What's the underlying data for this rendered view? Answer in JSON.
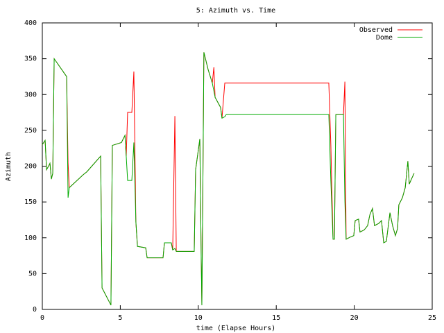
{
  "chart_data": {
    "type": "line",
    "title": "5: Azimuth vs. Time",
    "x_label": "time (Elapse Hours)",
    "y_label": "Azimuth",
    "x": [
      0,
      0.18,
      0.27,
      0.4,
      0.49,
      0.58,
      0.67,
      0.76,
      1.56,
      1.65,
      1.73,
      2.62,
      2.85,
      3.74,
      3.83,
      4.4,
      4.49,
      5.07,
      5.3,
      5.38,
      5.47,
      5.74,
      5.87,
      6.0,
      6.1,
      6.63,
      6.72,
      7.74,
      7.83,
      8.27,
      8.36,
      8.5,
      8.59,
      9.74,
      9.83,
      10.1,
      10.19,
      10.23,
      10.28,
      10.36,
      10.63,
      10.9,
      11.0,
      11.08,
      11.43,
      11.52,
      11.7,
      11.79,
      18.37,
      18.5,
      18.64,
      18.73,
      18.82,
      19.31,
      19.4,
      19.48,
      19.75,
      19.97,
      20.06,
      20.28,
      20.37,
      20.64,
      20.86,
      21.0,
      21.17,
      21.3,
      21.57,
      21.75,
      21.89,
      22.06,
      22.29,
      22.46,
      22.64,
      22.78,
      22.86,
      23.09,
      23.27,
      23.44,
      23.53,
      23.67,
      23.84
    ],
    "series": [
      {
        "name": "Observed",
        "color": "#ff0000",
        "values": [
          230,
          236,
          195,
          200,
          204,
          182,
          190,
          350,
          325,
          205,
          170,
          188,
          192,
          214,
          30,
          6,
          229,
          233,
          243,
          214,
          275,
          275,
          332,
          122,
          88,
          86,
          72,
          72,
          93,
          93,
          83,
          270,
          81,
          81,
          195,
          238,
          69,
          6,
          132,
          359,
          335,
          316,
          338,
          296,
          282,
          267,
          316,
          316,
          316,
          230,
          98,
          98,
          272,
          272,
          318,
          98,
          101,
          103,
          124,
          126,
          108,
          111,
          117,
          132,
          141,
          117,
          120,
          124,
          93,
          95,
          135,
          117,
          103,
          113,
          146,
          156,
          170,
          207,
          175,
          182,
          190
        ]
      },
      {
        "name": "Dome",
        "color": "#00aa00",
        "values": [
          230,
          236,
          195,
          200,
          204,
          182,
          190,
          350,
          325,
          156,
          170,
          188,
          192,
          214,
          30,
          6,
          229,
          233,
          243,
          214,
          180,
          180,
          233,
          122,
          88,
          86,
          72,
          72,
          93,
          93,
          83,
          85,
          81,
          81,
          195,
          238,
          69,
          6,
          132,
          359,
          335,
          316,
          305,
          296,
          282,
          267,
          269,
          272,
          272,
          180,
          98,
          98,
          272,
          272,
          151,
          98,
          101,
          103,
          124,
          126,
          108,
          111,
          117,
          132,
          141,
          117,
          120,
          124,
          93,
          95,
          135,
          117,
          103,
          113,
          146,
          156,
          170,
          207,
          175,
          182,
          190
        ]
      }
    ],
    "xlim": [
      0,
      25
    ],
    "xticks": [
      0,
      5,
      10,
      15,
      20,
      25
    ],
    "ylim": [
      0,
      400
    ],
    "yticks": [
      0,
      50,
      100,
      150,
      200,
      250,
      300,
      350,
      400
    ],
    "legend": "top-right"
  }
}
